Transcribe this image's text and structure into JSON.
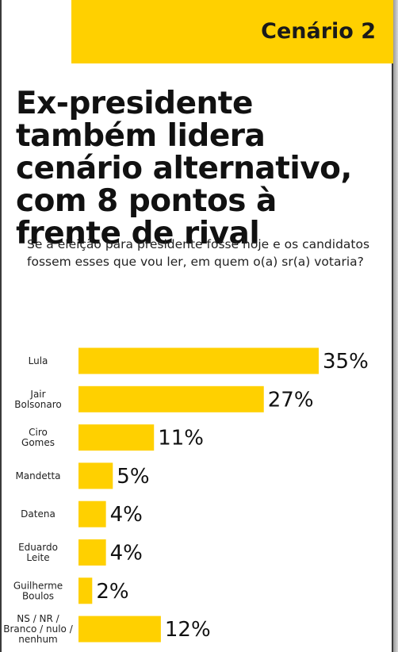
{
  "header": {
    "label": "Cenário 2"
  },
  "headline": "Ex-presidente também lidera cenário alternativo, com 8 pontos à frente de rival",
  "question": "Se a eleição para presidente fosse hoje e os candidatos fossem esses que vou ler, em quem o(a) sr(a) votaria?",
  "colors": {
    "accent": "#ffd000"
  },
  "chart_data": {
    "type": "bar",
    "orientation": "horizontal",
    "categories": [
      [
        "Lula"
      ],
      [
        "Jair",
        "Bolsonaro"
      ],
      [
        "Ciro",
        "Gomes"
      ],
      [
        "Mandetta"
      ],
      [
        "Datena"
      ],
      [
        "Eduardo",
        "Leite"
      ],
      [
        "Guilherme",
        "Boulos"
      ],
      [
        "NS / NR /",
        "Branco / nulo /",
        "nenhum"
      ]
    ],
    "values": [
      35,
      27,
      11,
      5,
      4,
      4,
      2,
      12
    ],
    "value_labels": [
      "35%",
      "27%",
      "11%",
      "5%",
      "4%",
      "4%",
      "2%",
      "12%"
    ],
    "title": "",
    "xlabel": "",
    "ylabel": "",
    "grid": false,
    "legend": "none"
  }
}
